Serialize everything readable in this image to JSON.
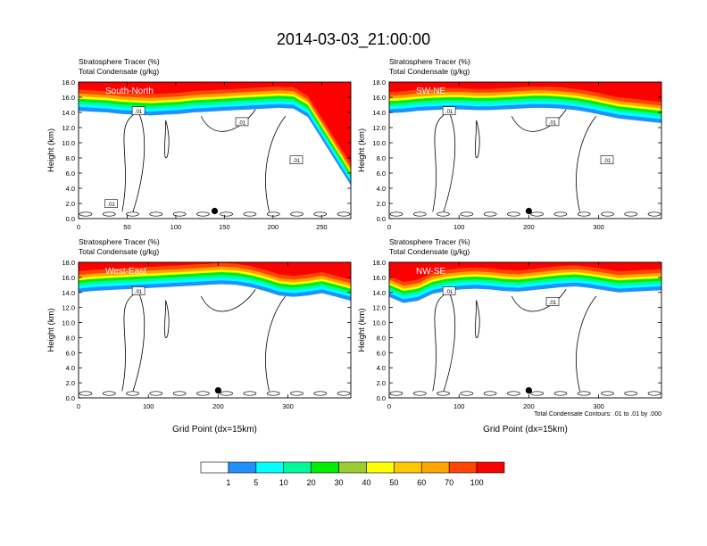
{
  "figure": {
    "title": "2014-03-03_21:00:00"
  },
  "colors": {
    "fill_levels": [
      "#ffffff",
      "#1e90ff",
      "#00ffff",
      "#00fa9a",
      "#00ee00",
      "#9acd32",
      "#ffff00",
      "#ffc800",
      "#ffa500",
      "#ff4500",
      "#ff0000"
    ],
    "contour": "#000000",
    "marker": "#000000"
  },
  "chart_data": [
    {
      "type": "heatmap",
      "panel_label": "South-North",
      "title_line1": "Stratosphere Tracer   (%)",
      "title_line2": "Total Condensate   (g/kg)",
      "ylabel": "Height (km)",
      "xlabel": "",
      "x_range": [
        0,
        280
      ],
      "y_range": [
        0,
        18
      ],
      "x_ticks": [
        "0",
        "50",
        "100",
        "150",
        "200",
        "250"
      ],
      "x_tick_values": [
        0,
        50,
        100,
        150,
        200,
        250
      ],
      "y_ticks": [
        "0.0",
        "2.0",
        "4.0",
        "6.0",
        "8.0",
        "10.0",
        "12.0",
        "14.0",
        "16.0",
        "18.0"
      ],
      "tropopause_km": [
        15.8,
        15.7,
        15.6,
        15.4,
        15.3,
        15.2,
        15.3,
        15.4,
        15.6,
        15.7,
        15.8,
        15.9,
        16.0,
        16.1,
        16.2,
        16.1,
        15.0,
        12.0,
        9.0,
        6.0
      ],
      "contour_labels": [
        ".01",
        ".01",
        ".01",
        ".01"
      ],
      "marker_x": 140,
      "marker_y_km": 1.0,
      "note": ""
    },
    {
      "type": "heatmap",
      "panel_label": "SW-NE",
      "title_line1": "Stratosphere Tracer   (%)",
      "title_line2": "Total Condensate   (g/kg)",
      "ylabel": "Height (km)",
      "xlabel": "",
      "x_range": [
        0,
        390
      ],
      "y_range": [
        0,
        18
      ],
      "x_ticks": [
        "0",
        "100",
        "200",
        "300"
      ],
      "x_tick_values": [
        0,
        100,
        200,
        300
      ],
      "y_ticks": [
        "0.0",
        "2.0",
        "4.0",
        "6.0",
        "8.0",
        "10.0",
        "12.0",
        "14.0",
        "16.0",
        "18.0"
      ],
      "tropopause_km": [
        15.5,
        15.6,
        15.8,
        15.9,
        16.0,
        16.0,
        15.9,
        15.9,
        16.0,
        16.1,
        16.2,
        16.2,
        16.1,
        15.9,
        15.6,
        15.2,
        14.8,
        14.6,
        14.4,
        14.2
      ],
      "contour_labels": [
        ".01",
        ".01",
        ".01"
      ],
      "marker_x": 200,
      "marker_y_km": 1.0,
      "note": ""
    },
    {
      "type": "heatmap",
      "panel_label": "West-East",
      "title_line1": "Stratosphere Tracer   (%)",
      "title_line2": "Total Condensate   (g/kg)",
      "ylabel": "Height (km)",
      "xlabel": "Grid Point (dx=15km)",
      "x_range": [
        0,
        390
      ],
      "y_range": [
        0,
        18
      ],
      "x_ticks": [
        "0",
        "100",
        "200",
        "300"
      ],
      "x_tick_values": [
        0,
        100,
        200,
        300
      ],
      "y_ticks": [
        "0.0",
        "2.0",
        "4.0",
        "6.0",
        "8.0",
        "10.0",
        "12.0",
        "14.0",
        "16.0",
        "18.0"
      ],
      "tropopause_km": [
        15.6,
        15.8,
        15.9,
        16.0,
        16.1,
        16.2,
        16.3,
        16.4,
        16.5,
        16.6,
        16.7,
        16.6,
        16.3,
        15.8,
        15.2,
        15.0,
        15.2,
        15.5,
        15.0,
        14.5
      ],
      "contour_labels": [
        ".01"
      ],
      "marker_x": 200,
      "marker_y_km": 1.0,
      "note": ""
    },
    {
      "type": "heatmap",
      "panel_label": "NW-SE",
      "title_line1": "Stratosphere Tracer   (%)",
      "title_line2": "Total Condensate   (g/kg)",
      "ylabel": "Height (km)",
      "xlabel": "Grid Point (dx=15km)",
      "x_range": [
        0,
        390
      ],
      "y_range": [
        0,
        18
      ],
      "x_ticks": [
        "0",
        "100",
        "200",
        "300"
      ],
      "x_tick_values": [
        0,
        100,
        200,
        300
      ],
      "y_ticks": [
        "0.0",
        "2.0",
        "4.0",
        "6.0",
        "8.0",
        "10.0",
        "12.0",
        "14.0",
        "16.0",
        "18.0"
      ],
      "tropopause_km": [
        15.0,
        14.2,
        14.5,
        15.4,
        15.8,
        16.0,
        16.1,
        16.0,
        15.8,
        15.7,
        15.9,
        16.1,
        16.3,
        16.4,
        16.2,
        15.9,
        15.6,
        15.7,
        15.8,
        15.9
      ],
      "contour_labels": [
        ".01",
        ".01"
      ],
      "marker_x": 200,
      "marker_y_km": 1.0,
      "note": "Total Condensate Contours: .01 to .01 by .000"
    }
  ],
  "colorbar": {
    "labels": [
      "1",
      "5",
      "10",
      "20",
      "30",
      "40",
      "50",
      "60",
      "70",
      "100"
    ]
  }
}
